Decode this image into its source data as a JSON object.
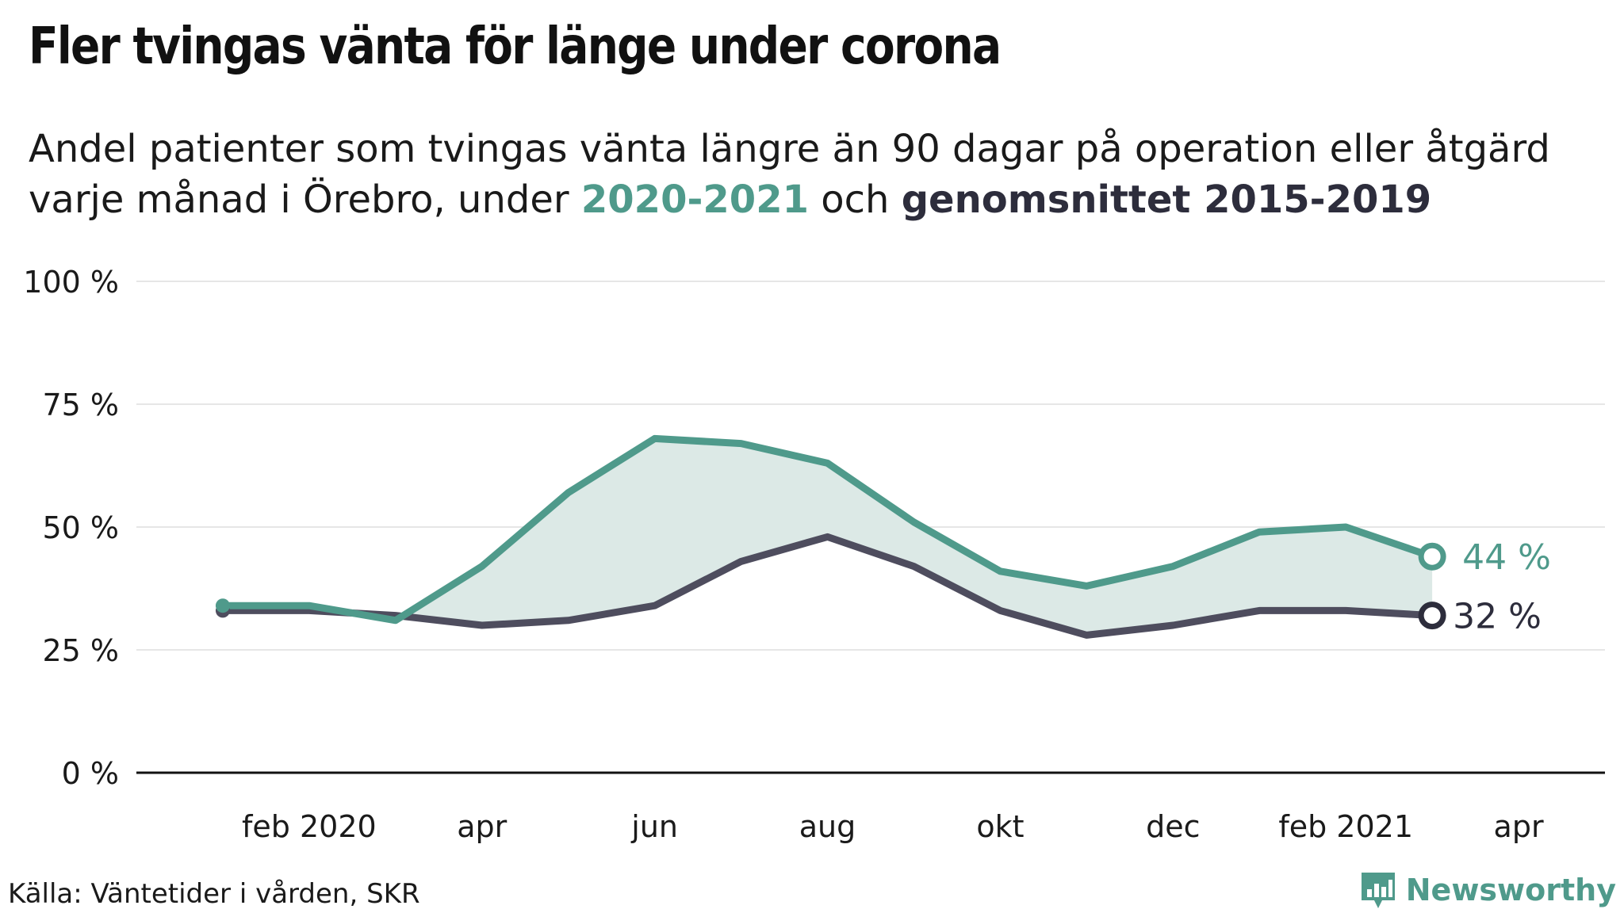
{
  "title": "Fler tvingas vänta för länge under corona",
  "subtitle": {
    "text_before": "Andel patienter som tvingas vänta längre än 90 dagar på operation eller åtgärd varje månad i Örebro, under ",
    "highlight_current": "2020-2021",
    "text_middle": " och ",
    "highlight_average": "genomsnittet 2015-2019"
  },
  "colors": {
    "current": "#4f9a8b",
    "average": "#4e4d5e",
    "area_fill": "#dce9e6",
    "gridline": "#e6e6e6",
    "axis": "#111111",
    "brand": "#4f9a8b"
  },
  "chart_data": {
    "type": "line",
    "x": [
      "2020-01",
      "2020-02",
      "2020-03",
      "2020-04",
      "2020-05",
      "2020-06",
      "2020-07",
      "2020-08",
      "2020-09",
      "2020-10",
      "2020-11",
      "2020-12",
      "2021-01",
      "2021-02",
      "2021-03"
    ],
    "series": [
      {
        "name": "2020-2021",
        "color": "#4f9a8b",
        "values": [
          34,
          34,
          31,
          42,
          57,
          68,
          67,
          63,
          51,
          41,
          38,
          42,
          49,
          50,
          44
        ]
      },
      {
        "name": "genomsnittet 2015-2019",
        "color": "#4e4d5e",
        "values": [
          33,
          33,
          32,
          30,
          31,
          34,
          43,
          48,
          42,
          33,
          28,
          30,
          33,
          33,
          32
        ]
      }
    ],
    "end_labels": [
      "44 %",
      "32 %"
    ],
    "ylim": [
      0,
      100
    ],
    "yticks": [
      0,
      25,
      50,
      75,
      100
    ],
    "ytick_labels": [
      "0 %",
      "25 %",
      "50 %",
      "75 %",
      "100 %"
    ],
    "xticks": [
      "2020-02",
      "2020-04",
      "2020-06",
      "2020-08",
      "2020-10",
      "2020-12",
      "2021-02",
      "2021-04"
    ],
    "xtick_labels": [
      "feb 2020",
      "apr",
      "jun",
      "aug",
      "okt",
      "dec",
      "feb 2021",
      "apr"
    ],
    "x_range": [
      "2019-12",
      "2021-05"
    ],
    "grid": true,
    "legend": "none"
  },
  "source": "Källa: Väntetider i vården, SKR",
  "brand": {
    "name": "Newsworthy",
    "icon": "newsworthy-logo-icon"
  }
}
